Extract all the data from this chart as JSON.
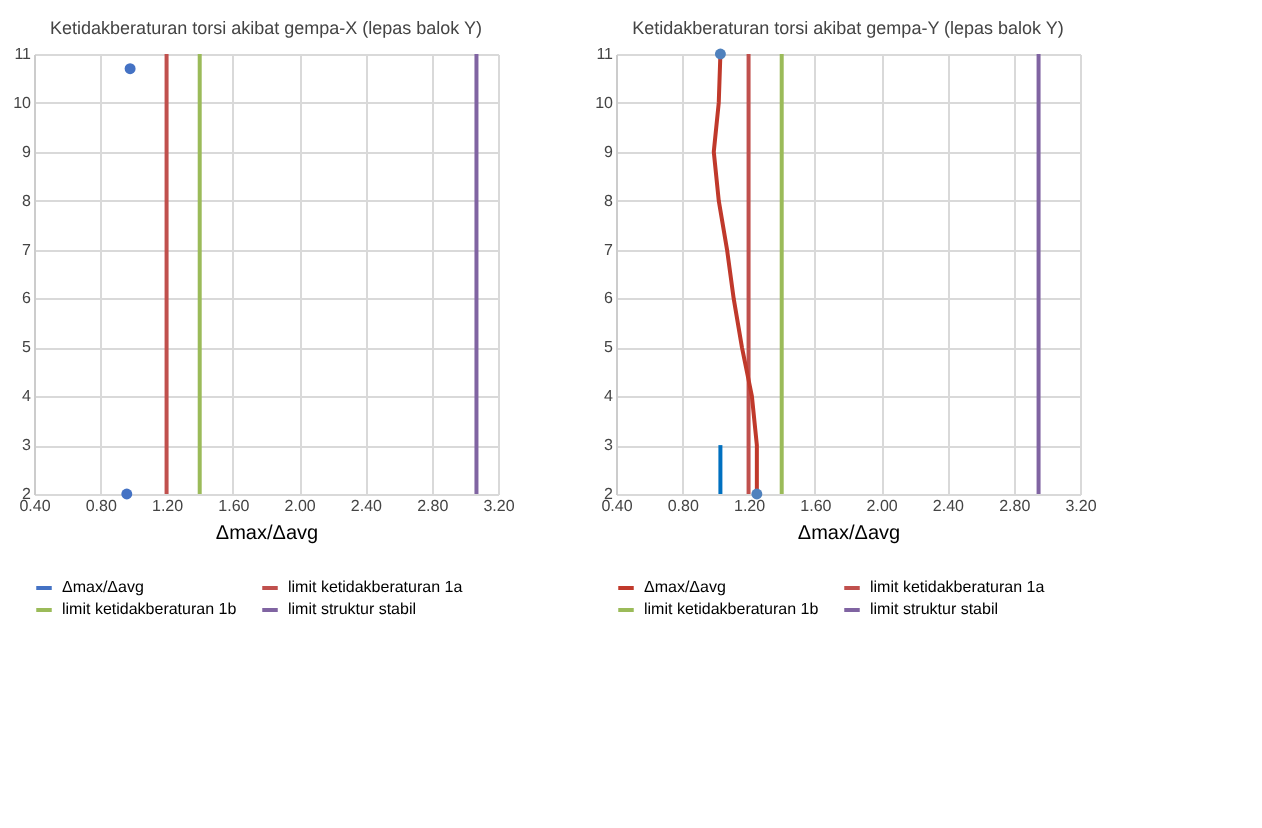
{
  "chart_data": [
    {
      "type": "scatter",
      "title": "Ketidakberaturan torsi akibat gempa-X (lepas balok Y)",
      "xlabel": "Δmax/Δavg",
      "xlim": [
        0.4,
        3.2
      ],
      "xticks": [
        {
          "value": 0.4,
          "label": "0.40"
        },
        {
          "value": 0.8,
          "label": "0.80"
        },
        {
          "value": 1.2,
          "label": "1.20"
        },
        {
          "value": 1.6,
          "label": "1.60"
        },
        {
          "value": 2.0,
          "label": "2.00"
        },
        {
          "value": 2.4,
          "label": "2.40"
        },
        {
          "value": 2.8,
          "label": "2.80"
        },
        {
          "value": 3.2,
          "label": "3.20"
        }
      ],
      "ylim": [
        2,
        11
      ],
      "yticks": [
        2,
        3,
        4,
        5,
        6,
        7,
        8,
        9,
        10,
        11
      ],
      "grid": true,
      "legend": "bottom",
      "marker": "circle",
      "series": [
        {
          "name": "Δmax/Δavg",
          "color": "#4472c4",
          "x": [
            0.98,
            0.96
          ],
          "values": [
            10.7,
            2
          ]
        }
      ],
      "ref_lines": [
        {
          "axis": "x",
          "value": 1.2,
          "label": "limit ketidakberaturan 1a",
          "color": "#c0504d"
        },
        {
          "axis": "x",
          "value": 1.4,
          "label": "limit ketidakberaturan 1b",
          "color": "#9bbb59"
        },
        {
          "axis": "x",
          "value": 3.07,
          "label": "limit struktur stabil",
          "color": "#8064a2"
        }
      ]
    },
    {
      "type": "line",
      "title": "Ketidakberaturan torsi akibat gempa-Y (lepas balok Y)",
      "xlabel": "Δmax/Δavg",
      "xlim": [
        0.4,
        3.2
      ],
      "xticks": [
        {
          "value": 0.4,
          "label": "0.40"
        },
        {
          "value": 0.8,
          "label": "0.80"
        },
        {
          "value": 1.2,
          "label": "1.20"
        },
        {
          "value": 1.6,
          "label": "1.60"
        },
        {
          "value": 2.0,
          "label": "2.00"
        },
        {
          "value": 2.4,
          "label": "2.40"
        },
        {
          "value": 2.8,
          "label": "2.80"
        },
        {
          "value": 3.2,
          "label": "3.20"
        }
      ],
      "ylim": [
        2,
        11
      ],
      "yticks": [
        2,
        3,
        4,
        5,
        6,
        7,
        8,
        9,
        10,
        11
      ],
      "grid": true,
      "legend": "bottom",
      "series": [
        {
          "name": "Δmax/Δavg",
          "color": "#c0392b",
          "x": [
            1.25,
            1.25,
            1.22,
            1.16,
            1.11,
            1.07,
            1.02,
            0.99,
            1.02,
            1.03
          ],
          "values": [
            2,
            3,
            4,
            5,
            6,
            7,
            8,
            9,
            10,
            11
          ]
        },
        {
          "type": "scatter",
          "color": "#4f81bd",
          "x": [
            1.25,
            1.03
          ],
          "values": [
            2,
            11
          ]
        },
        {
          "type": "line",
          "color": "#0070c0",
          "x": [
            1.03,
            1.03
          ],
          "values": [
            2,
            3
          ]
        }
      ],
      "ref_lines": [
        {
          "axis": "x",
          "value": 1.2,
          "label": "limit ketidakberaturan 1a",
          "color": "#c0504d"
        },
        {
          "axis": "x",
          "value": 1.4,
          "label": "limit ketidakberaturan 1b",
          "color": "#9bbb59"
        },
        {
          "axis": "x",
          "value": 2.95,
          "label": "limit struktur stabil",
          "color": "#8064a2"
        }
      ]
    }
  ]
}
